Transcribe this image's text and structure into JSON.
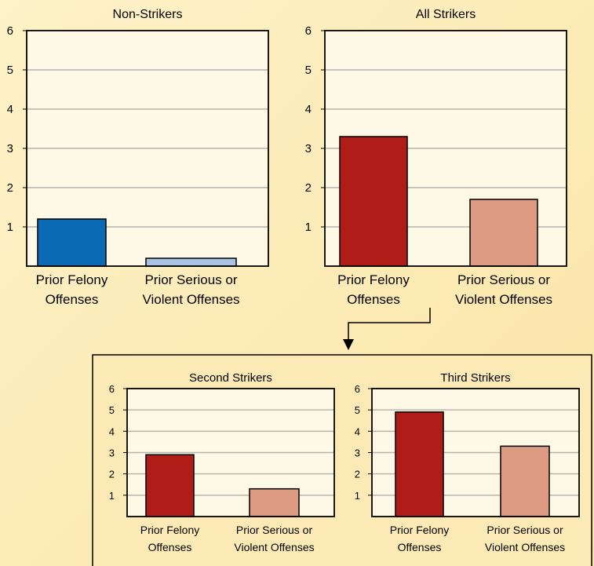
{
  "chart_data": [
    {
      "type": "bar",
      "title": "Non-Strikers",
      "categories": [
        [
          "Prior Felony",
          "Offenses"
        ],
        [
          "Prior Serious or",
          "Violent Offenses"
        ]
      ],
      "values": [
        1.2,
        0.2
      ],
      "colors": [
        "#0a6ab3",
        "#a9c3e3"
      ],
      "ylim": [
        0,
        6
      ],
      "yticks": [
        1,
        2,
        3,
        4,
        5,
        6
      ],
      "grid": true
    },
    {
      "type": "bar",
      "title": "All Strikers",
      "categories": [
        [
          "Prior Felony",
          "Offenses"
        ],
        [
          "Prior Serious or",
          "Violent Offenses"
        ]
      ],
      "values": [
        3.3,
        1.7
      ],
      "colors": [
        "#b01c18",
        "#dc9b82"
      ],
      "ylim": [
        0,
        6
      ],
      "yticks": [
        1,
        2,
        3,
        4,
        5,
        6
      ],
      "grid": true
    },
    {
      "type": "bar",
      "title": "Second Strikers",
      "categories": [
        [
          "Prior Felony",
          "Offenses"
        ],
        [
          "Prior Serious or",
          "Violent Offenses"
        ]
      ],
      "values": [
        2.9,
        1.3
      ],
      "colors": [
        "#b01c18",
        "#dc9b82"
      ],
      "ylim": [
        0,
        6
      ],
      "yticks": [
        1,
        2,
        3,
        4,
        5,
        6
      ],
      "grid": true
    },
    {
      "type": "bar",
      "title": "Third Strikers",
      "categories": [
        [
          "Prior Felony",
          "Offenses"
        ],
        [
          "Prior Serious or",
          "Violent Offenses"
        ]
      ],
      "values": [
        4.9,
        3.3
      ],
      "colors": [
        "#b01c18",
        "#dc9b82"
      ],
      "ylim": [
        0,
        6
      ],
      "yticks": [
        1,
        2,
        3,
        4,
        5,
        6
      ],
      "grid": true
    }
  ]
}
